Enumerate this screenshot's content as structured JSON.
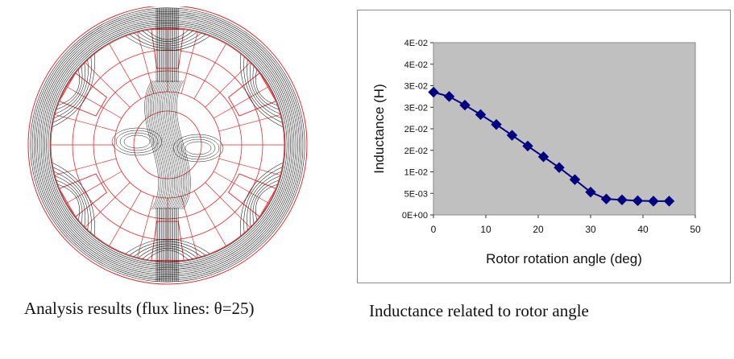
{
  "captions": {
    "left": "Analysis results (flux lines: θ=25)",
    "right": "Inductance related to rotor angle"
  },
  "colors": {
    "flux_line": "#1a1a1a",
    "mesh_line": "#e8282b",
    "plot_area": "#c0c0c0",
    "series": "#000080",
    "frame": "#8c8c8c"
  },
  "chart_data": {
    "type": "line",
    "title": "",
    "xlabel": "Rotor rotation angle (deg)",
    "ylabel": "Inductance (H)",
    "xlim": [
      0,
      50
    ],
    "ylim": [
      0,
      0.04
    ],
    "x_ticks": [
      "0",
      "10",
      "20",
      "30",
      "40",
      "50"
    ],
    "y_ticks": [
      "0E+00",
      "5E-03",
      "1E-02",
      "2E-02",
      "2E-02",
      "3E-02",
      "3E-02",
      "4E-02",
      "4E-02"
    ],
    "grid": false,
    "legend": "none",
    "marker": "diamond",
    "series": [
      {
        "x": [
          0,
          3,
          6,
          9,
          12,
          15,
          18,
          21,
          24,
          27,
          30,
          33,
          36,
          39,
          42,
          45
        ],
        "y": [
          0.0285,
          0.0275,
          0.0255,
          0.0233,
          0.021,
          0.0185,
          0.016,
          0.0135,
          0.011,
          0.0082,
          0.0053,
          0.0037,
          0.0035,
          0.0033,
          0.0032,
          0.0032
        ]
      }
    ]
  }
}
